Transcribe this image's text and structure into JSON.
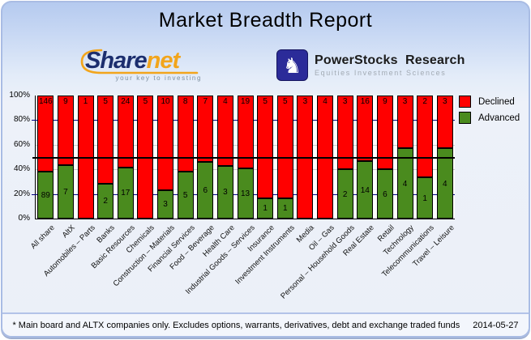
{
  "header": {
    "title": "Market Breadth Report"
  },
  "logos": {
    "sharenet": {
      "word_main": "Share",
      "word_accent": "net",
      "tagline": "your key to investing",
      "color_main": "#1c2e6e",
      "color_accent": "#f2a51c"
    },
    "powerstocks": {
      "name": "PowerStocks  Research",
      "subtitle": "Equities Investment Sciences",
      "icon": "chess-knight-icon",
      "icon_bg": "#2b2b99"
    }
  },
  "legend": [
    {
      "label": "Declined",
      "color": "#ff0000"
    },
    {
      "label": "Advanced",
      "color": "#4a8b1e"
    }
  ],
  "chart_data": {
    "type": "bar",
    "stacked": "percent",
    "title": "Market Breadth Report",
    "categories": [
      "All share",
      "AltX",
      "Automobiles – Parts",
      "Banks",
      "Basic Resources",
      "Chemicals",
      "Construction – Materials",
      "Financial Services",
      "Food – Beverage",
      "Health Care",
      "Industrial Goods – Services",
      "Insurance",
      "Investment Instruments",
      "Media",
      "Oil – Gas",
      "Personal – Household Goods",
      "Real Estate",
      "Retail",
      "Technology",
      "Telecommunications",
      "Travel – Leisure"
    ],
    "series": [
      {
        "name": "Declined",
        "color": "#ff0000",
        "values": [
          146,
          9,
          1,
          5,
          24,
          5,
          10,
          8,
          7,
          4,
          19,
          5,
          5,
          3,
          4,
          3,
          16,
          9,
          3,
          2,
          3
        ]
      },
      {
        "name": "Advanced",
        "color": "#4a8b1e",
        "values": [
          89,
          7,
          0,
          2,
          17,
          0,
          3,
          5,
          6,
          3,
          13,
          1,
          1,
          0,
          0,
          2,
          14,
          6,
          4,
          1,
          4
        ]
      }
    ],
    "yticks_pct": [
      0,
      20,
      40,
      60,
      80,
      100
    ],
    "ylim": [
      0,
      100
    ],
    "gridlines": {
      "navy_pct": [
        20,
        80
      ],
      "gray_pct": [
        40,
        60
      ],
      "navy_color": "#000080",
      "gray_color": "#c9c9c9"
    },
    "reference_line_pct": 50,
    "legend_position": "top-right",
    "xlabel": "",
    "ylabel": ""
  },
  "footer": {
    "note": "* Main board and ALTX companies only. Excludes options, warrants, derivatives, debt and exchange traded funds",
    "date": "2014-05-27"
  }
}
